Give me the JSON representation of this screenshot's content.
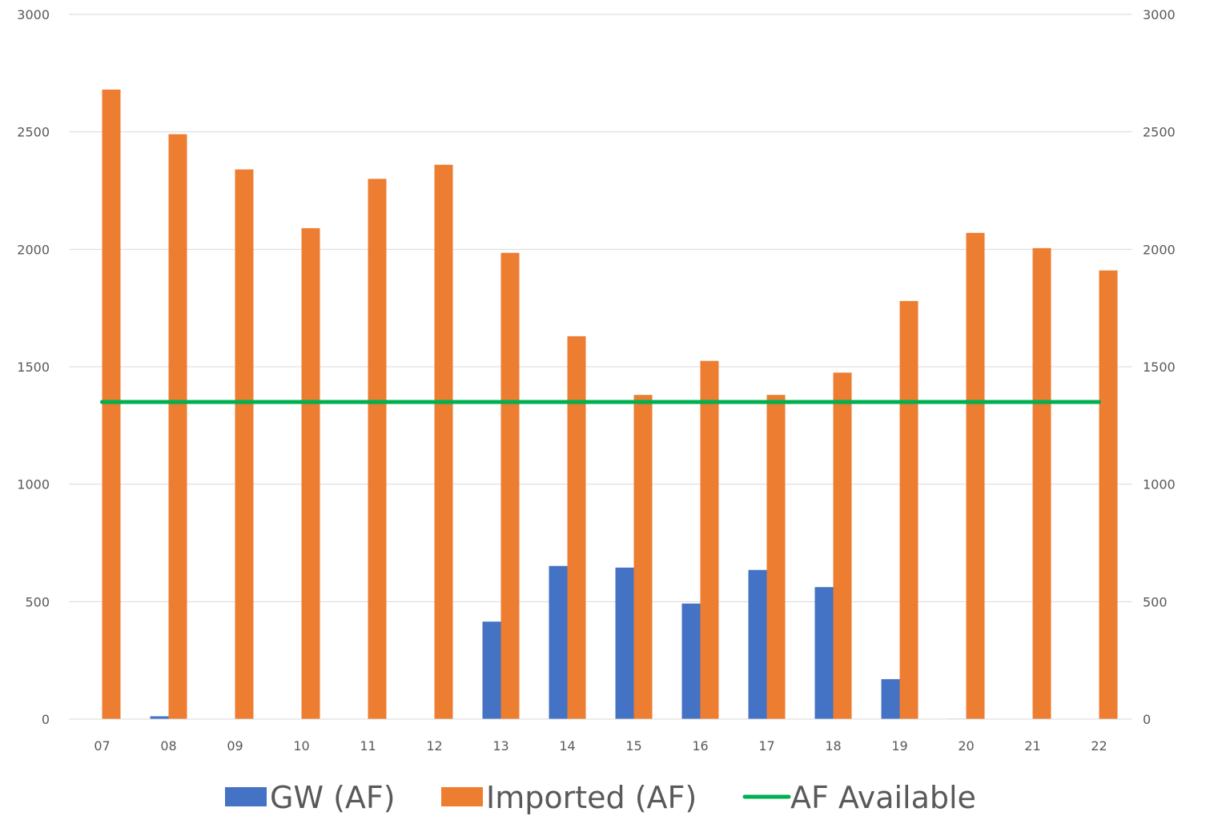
{
  "chart_data": {
    "type": "bar",
    "categories": [
      "07",
      "08",
      "09",
      "10",
      "11",
      "12",
      "13",
      "14",
      "15",
      "16",
      "17",
      "18",
      "19",
      "20",
      "21",
      "22"
    ],
    "series": [
      {
        "name": "GW (AF)",
        "kind": "bar",
        "color": "#4472c4",
        "values": [
          0,
          12,
          0,
          0,
          0,
          0,
          415,
          652,
          645,
          492,
          635,
          562,
          170,
          2,
          0,
          0
        ]
      },
      {
        "name": "Imported (AF)",
        "kind": "bar",
        "color": "#ed7d31",
        "values": [
          2680,
          2490,
          2340,
          2090,
          2300,
          2360,
          1985,
          1630,
          1380,
          1525,
          1380,
          1475,
          1780,
          2070,
          2005,
          1910
        ]
      },
      {
        "name": "AF Available",
        "kind": "line",
        "color": "#00b050",
        "values": [
          1350,
          1350,
          1350,
          1350,
          1350,
          1350,
          1350,
          1350,
          1350,
          1350,
          1350,
          1350,
          1350,
          1350,
          1350,
          1350
        ]
      }
    ],
    "ylim": [
      0,
      3000
    ],
    "yticks": [
      "0",
      "500",
      "1000",
      "1500",
      "2000",
      "2500",
      "3000"
    ],
    "secondary_ylim": [
      0,
      3000
    ],
    "secondary_yticks": [
      "0",
      "500",
      "1000",
      "1500",
      "2000",
      "2500",
      "3000"
    ],
    "grid": true,
    "legend": "bottom",
    "title": "",
    "xlabel": "",
    "ylabel": ""
  }
}
